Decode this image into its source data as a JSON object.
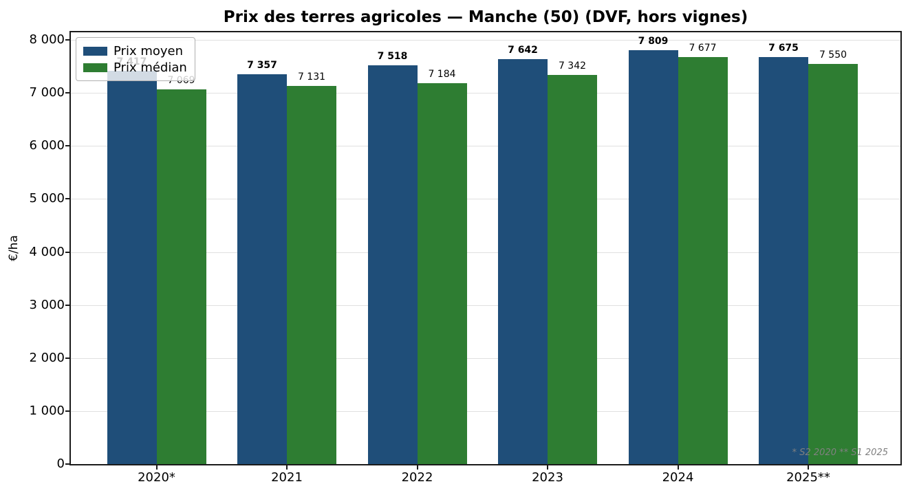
{
  "chart_data": {
    "type": "bar",
    "title": "Prix des terres agricoles — Manche (50) (DVF, hors vignes)",
    "ylabel": "€/ha",
    "xlabel": "",
    "ylim": [
      0,
      8000
    ],
    "ytick_interval": 1000,
    "grid": true,
    "legend_position": "upper left",
    "categories": [
      "2020*",
      "2021",
      "2022",
      "2023",
      "2024",
      "2025**"
    ],
    "series": [
      {
        "name": "Prix moyen",
        "color": "#1f4e79",
        "values": [
          7417,
          7357,
          7518,
          7642,
          7809,
          7675
        ]
      },
      {
        "name": "Prix médian",
        "color": "#2e7d32",
        "values": [
          7069,
          7131,
          7184,
          7342,
          7677,
          7550
        ]
      }
    ],
    "bar_value_labels": {
      "prix_moyen": [
        "7 417",
        "7 357",
        "7 518",
        "7 642",
        "7 809",
        "7 675"
      ],
      "prix_median": [
        "7 069",
        "7 131",
        "7 184",
        "7 342",
        "7 677",
        "7 550"
      ]
    },
    "footnote": "* S2 2020   ** S1 2025"
  }
}
